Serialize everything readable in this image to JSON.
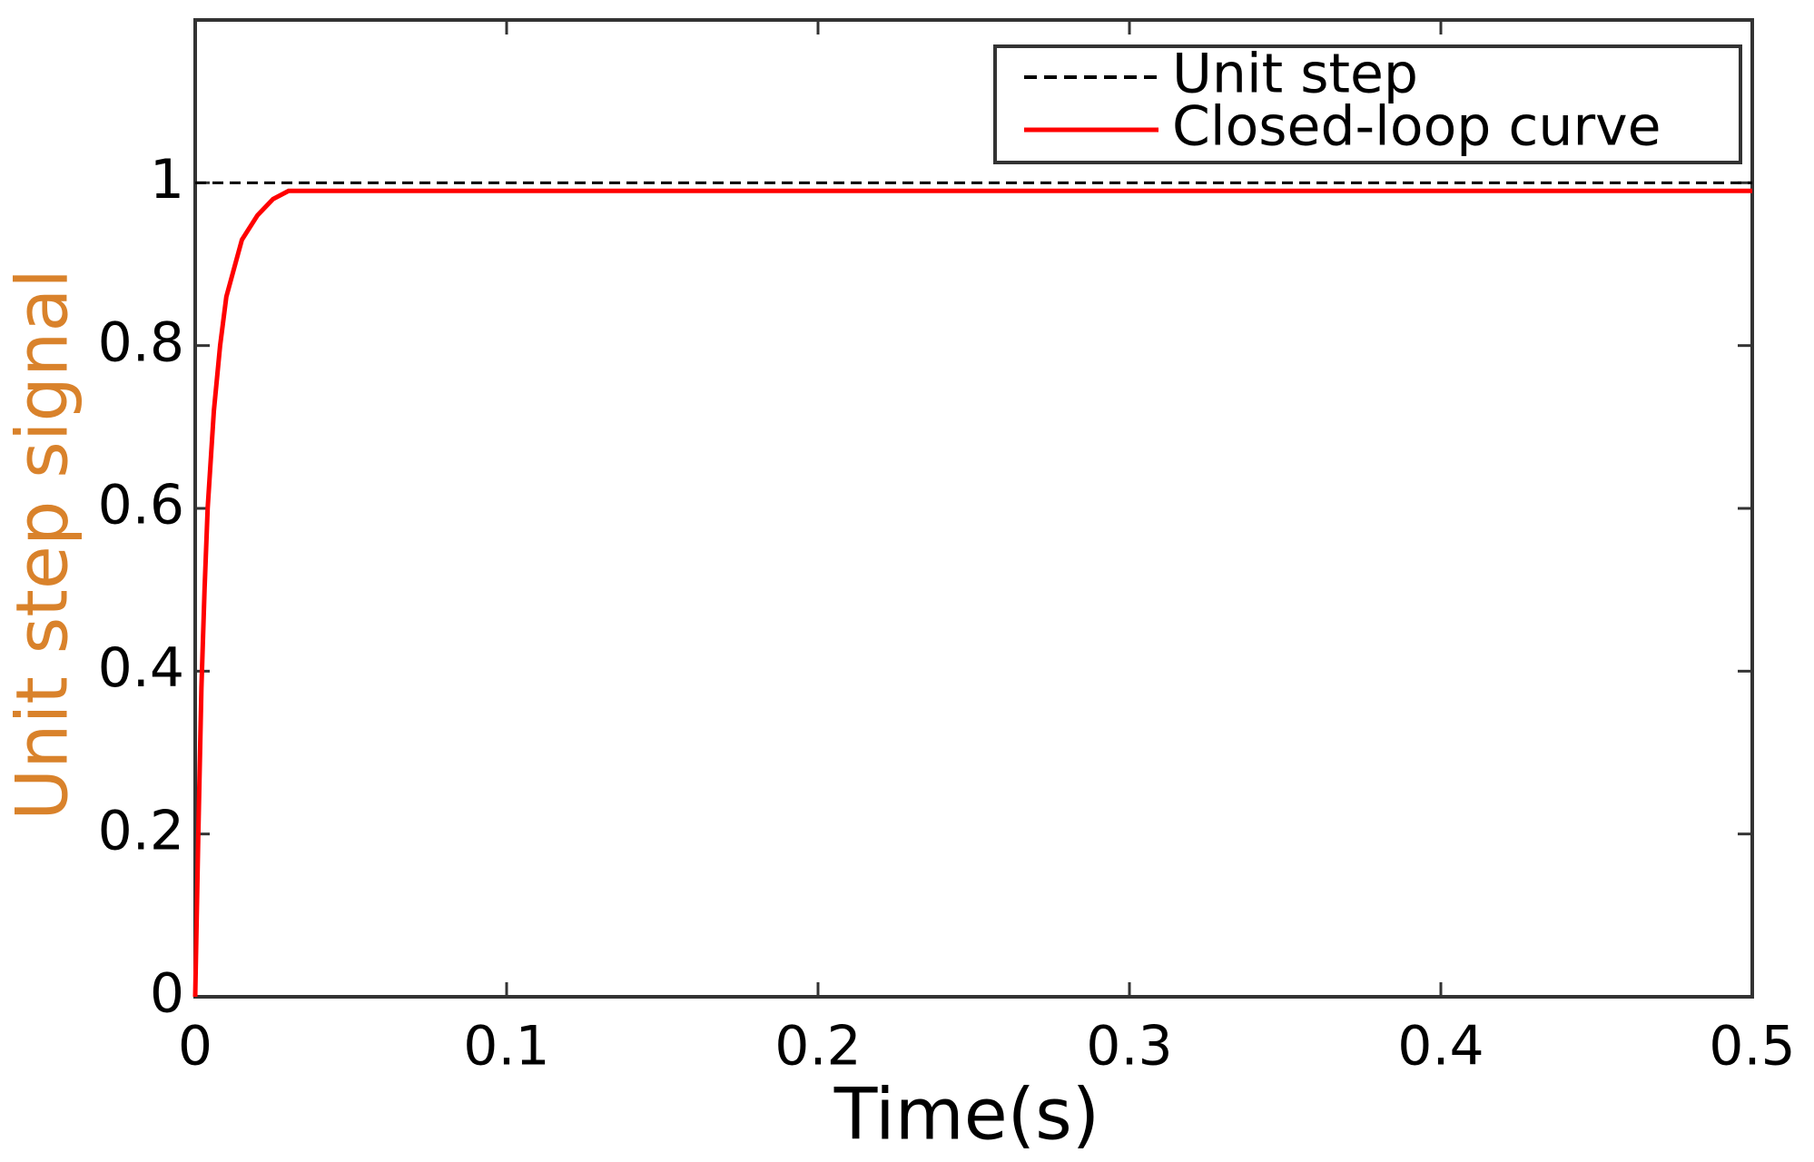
{
  "chart_data": {
    "type": "line",
    "xlabel": "Time(s)",
    "ylabel": "Unit step signal",
    "xlim": [
      0,
      0.5
    ],
    "xticks": [
      0,
      0.1,
      0.2,
      0.3,
      0.4,
      0.5
    ],
    "ylim": [
      0,
      1.2
    ],
    "yticks": [
      0,
      0.2,
      0.4,
      0.6,
      0.8,
      1
    ],
    "legend": "upper right",
    "series": [
      {
        "name": "Unit step",
        "color": "#000000",
        "dash": true,
        "x": [
          0,
          0.5
        ],
        "values": [
          1,
          1
        ]
      },
      {
        "name": "Closed-loop curve",
        "color": "#ff0000",
        "dash": false,
        "x": [
          0,
          0.001,
          0.002,
          0.003,
          0.004,
          0.006,
          0.008,
          0.01,
          0.015,
          0.02,
          0.025,
          0.03,
          0.04,
          0.1,
          0.2,
          0.3,
          0.4,
          0.5
        ],
        "values": [
          0,
          0.2,
          0.38,
          0.5,
          0.6,
          0.72,
          0.8,
          0.86,
          0.93,
          0.96,
          0.98,
          0.99,
          0.99,
          0.99,
          0.99,
          0.99,
          0.99,
          0.99
        ]
      }
    ]
  }
}
